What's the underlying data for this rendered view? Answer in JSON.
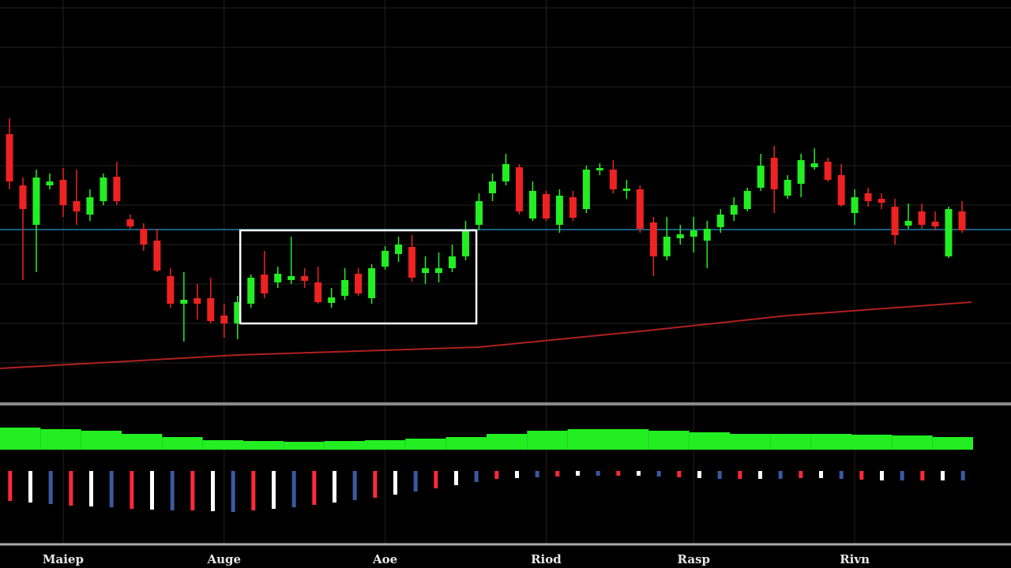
{
  "chart_data": [
    {
      "type": "candlestick",
      "categories": [
        null,
        null,
        null,
        null,
        "Maiep",
        null,
        null,
        null,
        null,
        null,
        null,
        null,
        null,
        null,
        null,
        null,
        "Auge",
        null,
        null,
        null,
        null,
        null,
        null,
        null,
        null,
        null,
        null,
        null,
        "Aoe",
        null,
        null,
        null,
        null,
        null,
        null,
        null,
        null,
        null,
        null,
        null,
        "Riod",
        null,
        null,
        null,
        null,
        null,
        null,
        null,
        null,
        null,
        null,
        "Rasp",
        null,
        null,
        null,
        null,
        null,
        null,
        null,
        null,
        null,
        null,
        null,
        "Rivn",
        null,
        null,
        null,
        null,
        null,
        null,
        null,
        null
      ],
      "open": [
        66,
        53,
        43,
        53,
        54.4,
        49,
        45.6,
        49,
        55.2,
        44.4,
        42,
        39,
        30,
        23,
        24.4,
        24.4,
        20,
        18,
        23,
        30.4,
        28.4,
        29,
        30,
        28.4,
        23.2,
        25,
        30.6,
        24.4,
        32.4,
        35.6,
        37.4,
        30.8,
        30.8,
        32,
        35,
        43,
        51,
        54,
        57.6,
        44.6,
        50.8,
        43,
        50,
        47,
        56.8,
        57,
        51.6,
        52,
        43.6,
        35,
        39.6,
        40,
        39,
        42.4,
        45.6,
        47,
        52.4,
        60,
        50.4,
        53.4,
        57.6,
        59,
        55.6,
        46,
        51,
        49.6,
        47.6,
        42.8,
        46.4,
        43.8,
        35,
        46.4
      ],
      "high": [
        70,
        55,
        57,
        56,
        57.4,
        57,
        52,
        56,
        59,
        45.6,
        43.4,
        42,
        32,
        31,
        28,
        29.6,
        23,
        25,
        30.4,
        36.4,
        32.4,
        40,
        32,
        32.4,
        27,
        32,
        32,
        33,
        37.6,
        40,
        40.4,
        35,
        36,
        38,
        44,
        51,
        56,
        61,
        58.4,
        54,
        51.6,
        52,
        51.6,
        58,
        58.6,
        59.4,
        54.4,
        53,
        45,
        45,
        43,
        45,
        44,
        47,
        50,
        52.4,
        61,
        63,
        55.6,
        61,
        62.4,
        60,
        58.4,
        52,
        52.4,
        51,
        49.6,
        48.4,
        48.4,
        46.4,
        47.6,
        49
      ],
      "low": [
        52,
        29,
        31,
        52,
        45,
        43,
        44,
        48,
        48,
        42,
        36.4,
        31,
        22,
        13.4,
        19,
        18,
        14.4,
        14,
        22,
        24.4,
        27,
        28,
        27,
        23,
        22,
        24,
        25,
        23,
        31.6,
        33.6,
        28.6,
        28,
        28.4,
        31,
        34,
        41.6,
        49,
        53,
        45.6,
        44,
        44,
        41,
        44,
        46,
        55.6,
        51,
        49.6,
        41,
        30,
        34,
        38,
        36,
        32,
        41,
        44,
        46.4,
        51.6,
        46,
        49.6,
        50,
        57,
        54,
        47.6,
        43,
        47.6,
        47,
        38,
        42,
        42,
        41.6,
        34.6,
        41
      ],
      "close": [
        54,
        47,
        55,
        54,
        48,
        46.4,
        50,
        55,
        49,
        42.6,
        38,
        31.4,
        23,
        24,
        23,
        18.6,
        18,
        23.4,
        29.6,
        25.6,
        30.6,
        30,
        28.8,
        23.4,
        24.6,
        29,
        25.6,
        32,
        36.4,
        38,
        29.6,
        32,
        32,
        35,
        41.6,
        49,
        54,
        58.4,
        46.4,
        51.6,
        44.6,
        50.4,
        44.8,
        57,
        57.4,
        52,
        52.2,
        42,
        35,
        40,
        40.6,
        41.6,
        42,
        45.6,
        48,
        51.6,
        58,
        52,
        54.4,
        59.4,
        58.6,
        54.4,
        48,
        50,
        49,
        48.6,
        40.4,
        44,
        43,
        42.6,
        47,
        41.6
      ],
      "up_color": "#22ee22",
      "down_color": "#ee2222",
      "ylim": [
        0,
        100
      ],
      "reference_line": 41.8,
      "reference_color": "#1e7fa8",
      "ma": {
        "x": [
          -0.7,
          17,
          35,
          47,
          58,
          71.7
        ],
        "values": [
          6.6,
          10,
          12,
          16,
          20,
          23.4
        ],
        "color": "#b02020"
      },
      "highlight": {
        "x": [
          17.2,
          34.8
        ],
        "y": [
          18,
          41.6
        ]
      },
      "grid": true
    },
    {
      "type": "bar",
      "color": "#22ee22",
      "ylim": [
        0,
        40
      ],
      "values": [
        28,
        26,
        24,
        20,
        16,
        12,
        11,
        10,
        11,
        12,
        14,
        16,
        20,
        24,
        26,
        26,
        24,
        22,
        20,
        20,
        20,
        19,
        18,
        16
      ]
    },
    {
      "type": "bar",
      "colors": [
        "#ff2a3a",
        "#ffffff",
        "#3a5aa0"
      ],
      "ylim": [
        -60,
        0
      ],
      "values": [
        -38,
        -40,
        -42,
        -44,
        -45,
        -46,
        -48,
        -49,
        -50,
        -50,
        -51,
        -52,
        -50,
        -48,
        -46,
        -43,
        -40,
        -37,
        -34,
        -30,
        -26,
        -22,
        -18,
        -14,
        -10,
        -9,
        -8,
        -7,
        -6,
        -6,
        -6,
        -6,
        -7,
        -8,
        -9,
        -10,
        -10,
        -10,
        -10,
        -9,
        -9,
        -10,
        -11,
        -12,
        -12,
        -12,
        -12,
        -12
      ]
    }
  ]
}
